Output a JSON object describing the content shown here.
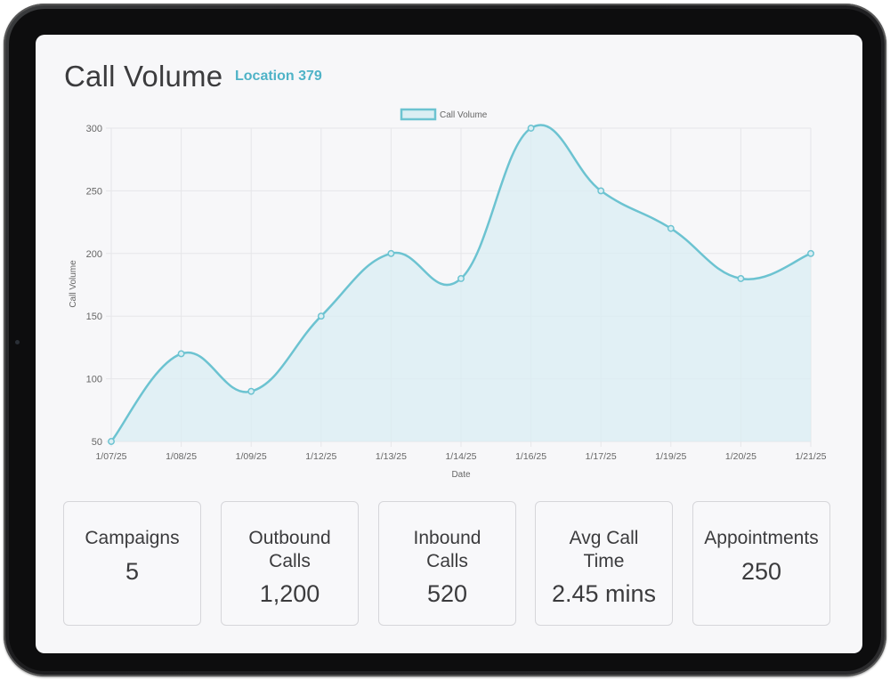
{
  "header": {
    "title": "Call Volume",
    "location": "Location 379"
  },
  "chart_data": {
    "type": "area",
    "title": "",
    "xlabel": "Date",
    "ylabel": "Call Volume",
    "ylim": [
      50,
      300
    ],
    "yticks": [
      "50",
      "100",
      "150",
      "200",
      "250",
      "300"
    ],
    "grid": true,
    "legend_position": "top-center",
    "categories": [
      "1/07/25",
      "1/08/25",
      "1/09/25",
      "1/12/25",
      "1/13/25",
      "1/14/25",
      "1/16/25",
      "1/17/25",
      "1/19/25",
      "1/20/25",
      "1/21/25"
    ],
    "series": [
      {
        "name": "Call Volume",
        "values": [
          50,
          120,
          90,
          150,
          200,
          180,
          300,
          250,
          220,
          180,
          200
        ],
        "color": "#6cc3d1",
        "fill": "#daeef3"
      }
    ]
  },
  "stats": [
    {
      "label": "Campaigns",
      "value": "5"
    },
    {
      "label": "Outbound Calls",
      "value": "1,200"
    },
    {
      "label": "Inbound Calls",
      "value": "520"
    },
    {
      "label": "Avg Call Time",
      "value": "2.45 mins"
    },
    {
      "label": "Appointments",
      "value": "250"
    }
  ]
}
